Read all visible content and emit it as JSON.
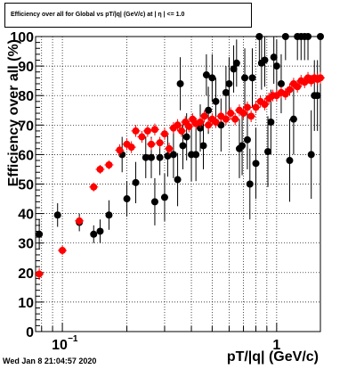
{
  "chart_data": {
    "type": "scatter",
    "title": "Efficiency over all for Global vs pT/|q| (GeV/c) at | η | <= 1.0",
    "xlabel": "pT/|q| (GeV/c)",
    "ylabel": "Efficiency over all (%)",
    "x_scale": "log",
    "xlim": [
      0.075,
      1.6
    ],
    "ylim": [
      0,
      100
    ],
    "grid": true,
    "y_ticks": [
      "0",
      "10",
      "20",
      "30",
      "40",
      "50",
      "60",
      "70",
      "80",
      "90",
      "100"
    ],
    "x_ticks": [
      {
        "value": 0.1,
        "base": "10",
        "exp": "−1"
      },
      {
        "value": 1,
        "label": "1"
      }
    ],
    "series": [
      {
        "color": "#000000",
        "marker": "circle",
        "points": [
          {
            "x": 0.078,
            "y": 33,
            "e": 5
          },
          {
            "x": 0.095,
            "y": 39.5,
            "e": 4
          },
          {
            "x": 0.12,
            "y": 37,
            "e": 3
          },
          {
            "x": 0.14,
            "y": 33,
            "e": 3
          },
          {
            "x": 0.15,
            "y": 34,
            "e": 4
          },
          {
            "x": 0.165,
            "y": 39.5,
            "e": 5
          },
          {
            "x": 0.19,
            "y": 60,
            "e": 6
          },
          {
            "x": 0.2,
            "y": 45,
            "e": 6
          },
          {
            "x": 0.22,
            "y": 50.5,
            "e": 7
          },
          {
            "x": 0.245,
            "y": 59,
            "e": 7
          },
          {
            "x": 0.26,
            "y": 59,
            "e": 7
          },
          {
            "x": 0.27,
            "y": 44,
            "e": 8
          },
          {
            "x": 0.285,
            "y": 59,
            "e": 6
          },
          {
            "x": 0.3,
            "y": 45.5,
            "e": 8
          },
          {
            "x": 0.31,
            "y": 59.5,
            "e": 7
          },
          {
            "x": 0.33,
            "y": 60,
            "e": 8
          },
          {
            "x": 0.345,
            "y": 51.5,
            "e": 9
          },
          {
            "x": 0.355,
            "y": 84,
            "e": 9
          },
          {
            "x": 0.365,
            "y": 63,
            "e": 8
          },
          {
            "x": 0.38,
            "y": 66,
            "e": 8
          },
          {
            "x": 0.4,
            "y": 60,
            "e": 9
          },
          {
            "x": 0.42,
            "y": 60,
            "e": 9
          },
          {
            "x": 0.44,
            "y": 69,
            "e": 8
          },
          {
            "x": 0.455,
            "y": 63,
            "e": 8
          },
          {
            "x": 0.47,
            "y": 87,
            "e": 7
          },
          {
            "x": 0.48,
            "y": 75,
            "e": 8
          },
          {
            "x": 0.5,
            "y": 86,
            "e": 8
          },
          {
            "x": 0.52,
            "y": 78,
            "e": 8
          },
          {
            "x": 0.55,
            "y": 70,
            "e": 9
          },
          {
            "x": 0.58,
            "y": 81,
            "e": 9
          },
          {
            "x": 0.6,
            "y": 84,
            "e": 9
          },
          {
            "x": 0.63,
            "y": 89,
            "e": 8
          },
          {
            "x": 0.65,
            "y": 91,
            "e": 8
          },
          {
            "x": 0.67,
            "y": 62,
            "e": 10
          },
          {
            "x": 0.69,
            "y": 63,
            "e": 10
          },
          {
            "x": 0.71,
            "y": 86,
            "e": 10
          },
          {
            "x": 0.73,
            "y": 65,
            "e": 10
          },
          {
            "x": 0.75,
            "y": 50,
            "e": 12
          },
          {
            "x": 0.77,
            "y": 86,
            "e": 10
          },
          {
            "x": 0.8,
            "y": 57,
            "e": 12
          },
          {
            "x": 0.83,
            "y": 100,
            "e": 10
          },
          {
            "x": 0.85,
            "y": 91,
            "e": 9
          },
          {
            "x": 0.88,
            "y": 92,
            "e": 9
          },
          {
            "x": 0.91,
            "y": 61,
            "e": 12
          },
          {
            "x": 0.94,
            "y": 71,
            "e": 11
          },
          {
            "x": 0.97,
            "y": 93,
            "e": 9
          },
          {
            "x": 1.0,
            "y": 90,
            "e": 9
          },
          {
            "x": 1.05,
            "y": 84,
            "e": 10
          },
          {
            "x": 1.1,
            "y": 100,
            "e": 8
          },
          {
            "x": 1.15,
            "y": 58,
            "e": 14
          },
          {
            "x": 1.2,
            "y": 72,
            "e": 12
          },
          {
            "x": 1.25,
            "y": 100,
            "e": 8
          },
          {
            "x": 1.3,
            "y": 100,
            "e": 8
          },
          {
            "x": 1.35,
            "y": 100,
            "e": 8
          },
          {
            "x": 1.4,
            "y": 100,
            "e": 8
          },
          {
            "x": 1.45,
            "y": 60,
            "e": 15
          },
          {
            "x": 1.5,
            "y": 80,
            "e": 12
          },
          {
            "x": 1.55,
            "y": 80,
            "e": 12
          },
          {
            "x": 1.6,
            "y": 100,
            "e": 8
          }
        ]
      },
      {
        "color": "#ff0000",
        "marker": "circle",
        "points": [
          {
            "x": 0.078,
            "y": 19.5,
            "e": 2
          },
          {
            "x": 0.1,
            "y": 27.5,
            "e": 1.5
          },
          {
            "x": 0.12,
            "y": 37.5,
            "e": 1.5
          },
          {
            "x": 0.14,
            "y": 49,
            "e": 1.5
          },
          {
            "x": 0.15,
            "y": 55,
            "e": 1.5
          },
          {
            "x": 0.165,
            "y": 56.5,
            "e": 1.5
          },
          {
            "x": 0.185,
            "y": 61.5,
            "e": 2
          },
          {
            "x": 0.2,
            "y": 63.5,
            "e": 2
          },
          {
            "x": 0.21,
            "y": 62.5,
            "e": 2
          },
          {
            "x": 0.22,
            "y": 68,
            "e": 2
          },
          {
            "x": 0.235,
            "y": 66,
            "e": 2
          },
          {
            "x": 0.25,
            "y": 68,
            "e": 2
          },
          {
            "x": 0.26,
            "y": 63.5,
            "e": 2
          },
          {
            "x": 0.27,
            "y": 68.5,
            "e": 2
          },
          {
            "x": 0.285,
            "y": 64,
            "e": 2
          },
          {
            "x": 0.3,
            "y": 67,
            "e": 2
          },
          {
            "x": 0.315,
            "y": 62,
            "e": 2
          },
          {
            "x": 0.33,
            "y": 69,
            "e": 2
          },
          {
            "x": 0.345,
            "y": 70,
            "e": 2
          },
          {
            "x": 0.36,
            "y": 68,
            "e": 2
          },
          {
            "x": 0.375,
            "y": 71,
            "e": 2
          },
          {
            "x": 0.39,
            "y": 69.5,
            "e": 2
          },
          {
            "x": 0.405,
            "y": 72,
            "e": 2
          },
          {
            "x": 0.42,
            "y": 70.5,
            "e": 2
          },
          {
            "x": 0.44,
            "y": 71,
            "e": 2
          },
          {
            "x": 0.46,
            "y": 73,
            "e": 2
          },
          {
            "x": 0.48,
            "y": 70,
            "e": 2
          },
          {
            "x": 0.5,
            "y": 72,
            "e": 2
          },
          {
            "x": 0.52,
            "y": 71,
            "e": 2
          },
          {
            "x": 0.55,
            "y": 73,
            "e": 2
          },
          {
            "x": 0.58,
            "y": 72,
            "e": 2
          },
          {
            "x": 0.61,
            "y": 74,
            "e": 2
          },
          {
            "x": 0.64,
            "y": 72,
            "e": 2
          },
          {
            "x": 0.67,
            "y": 75,
            "e": 2
          },
          {
            "x": 0.7,
            "y": 74,
            "e": 2
          },
          {
            "x": 0.73,
            "y": 76,
            "e": 2
          },
          {
            "x": 0.76,
            "y": 73,
            "e": 2
          },
          {
            "x": 0.8,
            "y": 76,
            "e": 2
          },
          {
            "x": 0.84,
            "y": 78,
            "e": 2
          },
          {
            "x": 0.88,
            "y": 77,
            "e": 2
          },
          {
            "x": 0.92,
            "y": 79,
            "e": 2
          },
          {
            "x": 0.96,
            "y": 80,
            "e": 2
          },
          {
            "x": 1.0,
            "y": 80,
            "e": 2
          },
          {
            "x": 1.05,
            "y": 81,
            "e": 2
          },
          {
            "x": 1.1,
            "y": 80.5,
            "e": 2
          },
          {
            "x": 1.15,
            "y": 82,
            "e": 2
          },
          {
            "x": 1.2,
            "y": 84,
            "e": 2
          },
          {
            "x": 1.25,
            "y": 83,
            "e": 2
          },
          {
            "x": 1.3,
            "y": 85,
            "e": 2
          },
          {
            "x": 1.35,
            "y": 84.5,
            "e": 2
          },
          {
            "x": 1.4,
            "y": 86,
            "e": 2
          },
          {
            "x": 1.45,
            "y": 85,
            "e": 2
          },
          {
            "x": 1.5,
            "y": 86,
            "e": 2
          },
          {
            "x": 1.55,
            "y": 85.5,
            "e": 2
          },
          {
            "x": 1.6,
            "y": 86,
            "e": 2
          }
        ]
      }
    ]
  },
  "footer": {
    "timestamp": "Wed Jan  8 21:04:57 2020"
  }
}
